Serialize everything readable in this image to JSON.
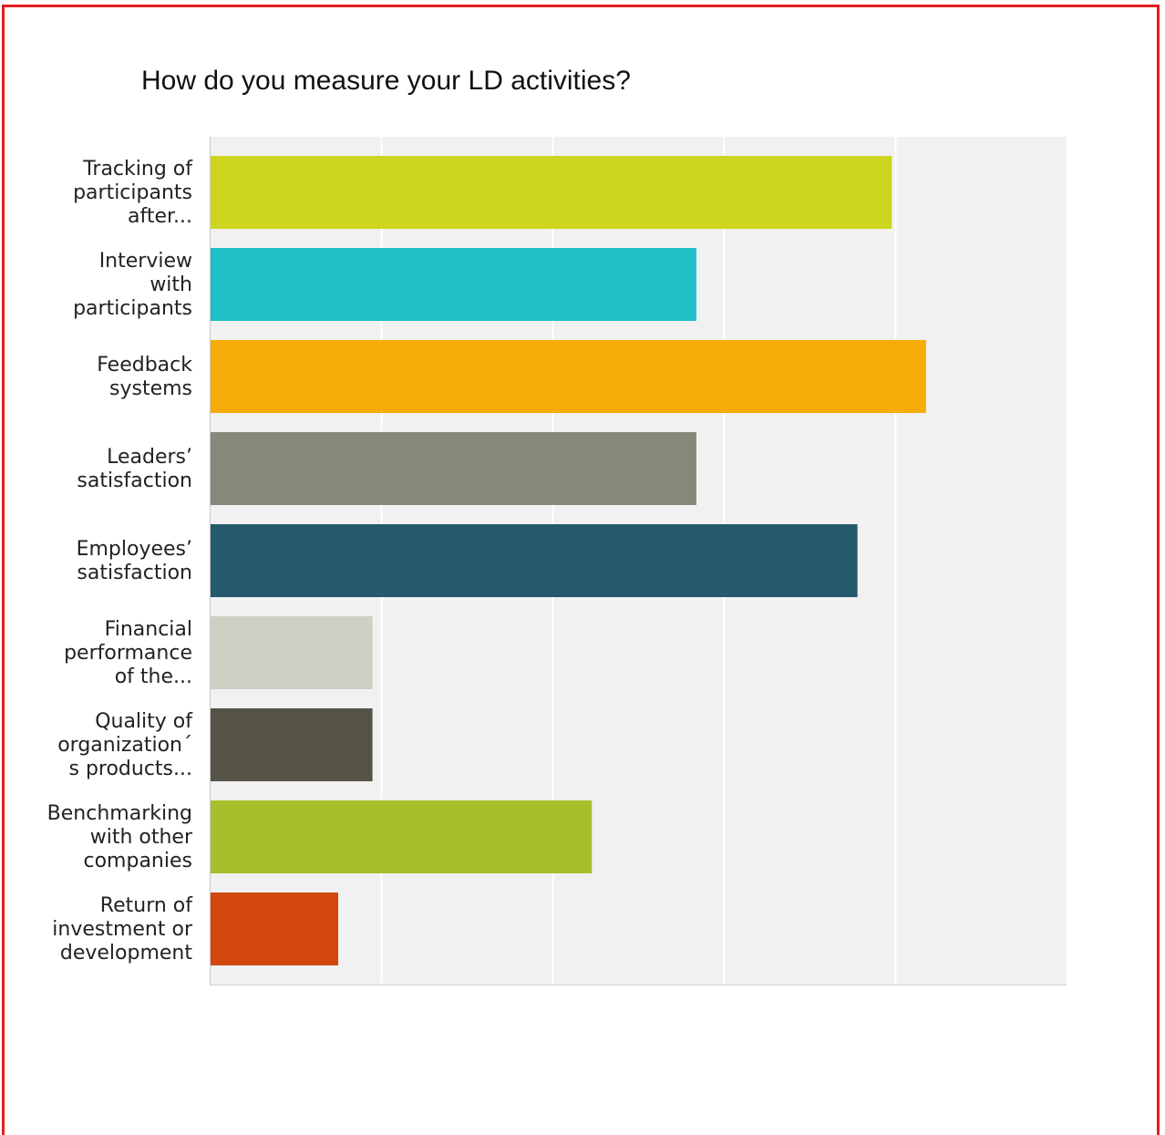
{
  "chart_data": {
    "type": "bar",
    "orientation": "horizontal",
    "title": "How do you measure your LD activities?",
    "xlabel": "",
    "ylabel": "",
    "xlim": [
      0,
      50
    ],
    "grid": true,
    "legend": "none",
    "categories": [
      [
        "Tracking of",
        "participants",
        "after..."
      ],
      [
        "Interview",
        "with",
        "participants"
      ],
      [
        "Feedback",
        "systems"
      ],
      [
        "Leaders’",
        "satisfaction"
      ],
      [
        "Employees’",
        "satisfaction"
      ],
      [
        "Financial",
        "performance",
        "of the..."
      ],
      [
        "Quality of",
        "organization´",
        "s products..."
      ],
      [
        "Benchmarking",
        "with other",
        "companies"
      ],
      [
        "Return of",
        "investment or",
        "development"
      ]
    ],
    "values": [
      39.8,
      28.4,
      41.8,
      28.4,
      37.8,
      9.5,
      9.5,
      22.3,
      7.5
    ],
    "colors": [
      "#cdd51f",
      "#20bec6",
      "#f6ab06",
      "#87877a",
      "#245a6c",
      "#d0cfc4",
      "#565447",
      "#a6bf2b",
      "#d1470c"
    ]
  }
}
